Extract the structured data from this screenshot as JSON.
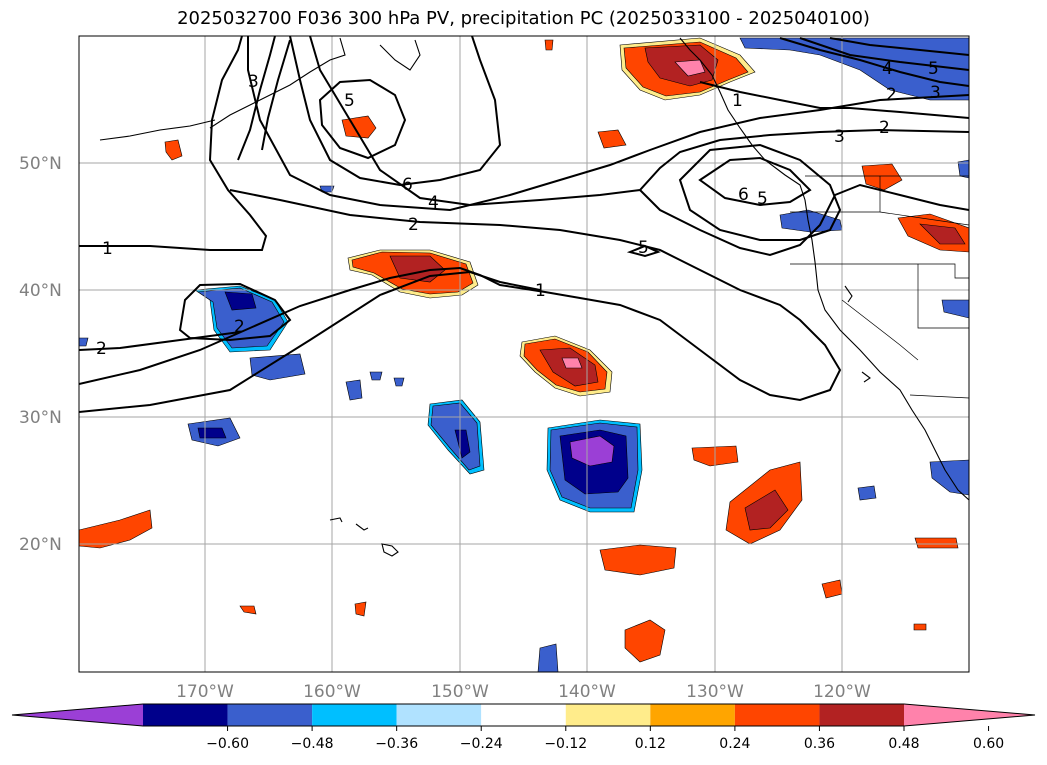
{
  "title": "2025032700 F036 300 hPa PV, precipitation PC (2025033100 - 2025040100)",
  "axes": {
    "lat_ticks": [
      "50°N",
      "40°N",
      "30°N",
      "20°N"
    ],
    "lon_ticks": [
      "170°W",
      "160°W",
      "150°W",
      "140°W",
      "130°W",
      "120°W"
    ]
  },
  "colorbar": {
    "ticks": [
      "−0.60",
      "−0.48",
      "−0.36",
      "−0.24",
      "−0.12",
      "0.12",
      "0.24",
      "0.36",
      "0.48",
      "0.60"
    ],
    "colors": [
      "#9b3fd6",
      "#00008b",
      "#3a5fcd",
      "#00bfff",
      "#b0e2ff",
      "#ffffff",
      "#ffec8b",
      "#ffa500",
      "#ff4500",
      "#b22222",
      "#ff82ab"
    ]
  },
  "contour_labels": [
    "3",
    "5",
    "6",
    "4",
    "2",
    "1",
    "2",
    "2",
    "1",
    "3",
    "2",
    "4",
    "5",
    "2",
    "3",
    "6",
    "5",
    "5",
    "1"
  ]
}
